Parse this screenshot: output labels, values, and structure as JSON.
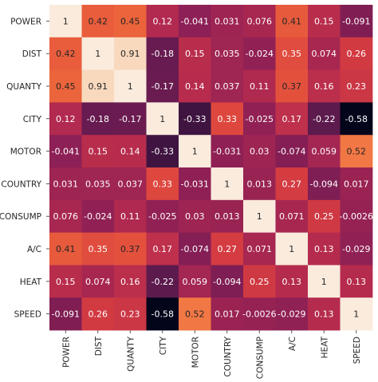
{
  "chart_data": {
    "type": "heatmap",
    "title": "",
    "xlabel": "",
    "ylabel": "",
    "labels": [
      "POWER",
      "DIST",
      "QUANTY",
      "CITY",
      "MOTOR",
      "COUNTRY",
      "CONSUMP",
      "A/C",
      "HEAT",
      "SPEED"
    ],
    "value_labels": [
      [
        "1",
        "0.42",
        "0.45",
        "0.12",
        "-0.041",
        "0.031",
        "0.076",
        "0.41",
        "0.15",
        "-0.091"
      ],
      [
        "0.42",
        "1",
        "0.91",
        "-0.18",
        "0.15",
        "0.035",
        "-0.024",
        "0.35",
        "0.074",
        "0.26"
      ],
      [
        "0.45",
        "0.91",
        "1",
        "-0.17",
        "0.14",
        "0.037",
        "0.11",
        "0.37",
        "0.16",
        "0.23"
      ],
      [
        "0.12",
        "-0.18",
        "-0.17",
        "1",
        "-0.33",
        "0.33",
        "-0.025",
        "0.17",
        "-0.22",
        "-0.58"
      ],
      [
        "-0.041",
        "0.15",
        "0.14",
        "-0.33",
        "1",
        "-0.031",
        "0.03",
        "-0.074",
        "0.059",
        "0.52"
      ],
      [
        "0.031",
        "0.035",
        "0.037",
        "0.33",
        "-0.031",
        "1",
        "0.013",
        "0.27",
        "-0.094",
        "0.017"
      ],
      [
        "0.076",
        "-0.024",
        "0.11",
        "-0.025",
        "0.03",
        "0.013",
        "1",
        "0.071",
        "0.25",
        "-0.0026"
      ],
      [
        "0.41",
        "0.35",
        "0.37",
        "0.17",
        "-0.074",
        "0.27",
        "0.071",
        "1",
        "0.13",
        "-0.029"
      ],
      [
        "0.15",
        "0.074",
        "0.16",
        "-0.22",
        "0.059",
        "-0.094",
        "0.25",
        "0.13",
        "1",
        "0.13"
      ],
      [
        "-0.091",
        "0.26",
        "0.23",
        "-0.58",
        "0.52",
        "0.017",
        "-0.0026",
        "-0.029",
        "0.13",
        "1"
      ]
    ],
    "value_range": [
      -0.58,
      1
    ],
    "colormap": [
      "#03051a",
      "#2b0f39",
      "#5a1a4d",
      "#8a1f56",
      "#b32a4f",
      "#da3f3f",
      "#ef6a3a",
      "#f59a5e",
      "#f8c7a0",
      "#faebdd"
    ],
    "text_color_dark_threshold": 0.6,
    "grid": false,
    "legend": "none"
  }
}
